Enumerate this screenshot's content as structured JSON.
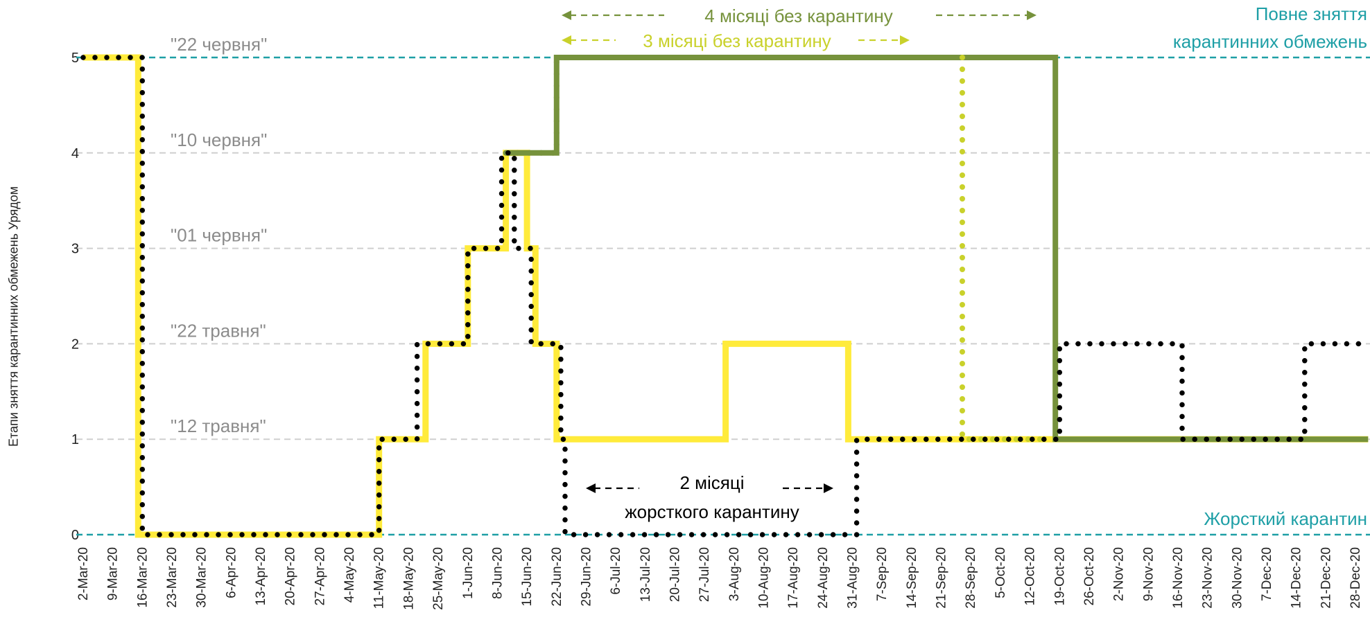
{
  "chart_data": {
    "type": "line",
    "ylabel": "Етапи зняття карантинних обмежень Урядом",
    "xlabel": "",
    "ylim": [
      0,
      5
    ],
    "x_range": [
      "2020-03-02",
      "2020-12-28"
    ],
    "yticks": [
      "0",
      "1",
      "2",
      "3",
      "4",
      "5"
    ],
    "grid": "horizontal dashed",
    "categories": [
      "2-Mar-20",
      "9-Mar-20",
      "16-Mar-20",
      "23-Mar-20",
      "30-Mar-20",
      "6-Apr-20",
      "13-Apr-20",
      "20-Apr-20",
      "27-Apr-20",
      "4-May-20",
      "11-May-20",
      "18-May-20",
      "25-May-20",
      "1-Jun-20",
      "8-Jun-20",
      "15-Jun-20",
      "22-Jun-20",
      "29-Jun-20",
      "6-Jul-20",
      "13-Jul-20",
      "20-Jul-20",
      "27-Jul-20",
      "3-Aug-20",
      "10-Aug-20",
      "17-Aug-20",
      "24-Aug-20",
      "31-Aug-20",
      "7-Sep-20",
      "14-Sep-20",
      "21-Sep-20",
      "28-Sep-20",
      "5-Oct-20",
      "12-Oct-20",
      "19-Oct-20",
      "26-Oct-20",
      "2-Nov-20",
      "9-Nov-20",
      "16-Nov-20",
      "23-Nov-20",
      "30-Nov-20",
      "7-Dec-20",
      "14-Dec-20",
      "21-Dec-20",
      "28-Dec-20"
    ],
    "stage_labels": [
      {
        "y": 1,
        "text": "\"12 травня\""
      },
      {
        "y": 2,
        "text": "\"22 травня\""
      },
      {
        "y": 3,
        "text": "\"01 червня\""
      },
      {
        "y": 4,
        "text": "\"10 червня\""
      },
      {
        "y": 5,
        "text": "\"22 червня\""
      }
    ],
    "reference_lines": [
      {
        "y": 5,
        "text": [
          "Повне зняття",
          "карантинних обмежень"
        ]
      },
      {
        "y": 0,
        "text": [
          "Жорсткий карантин"
        ]
      }
    ],
    "annotations": {
      "four_months": "4 місяці без карантину",
      "three_months": "3 місяці без карантину",
      "two_months": [
        "2 місяці",
        "жорсткого карантину"
      ]
    },
    "series": [
      {
        "style": "solid",
        "color": "#FFEB3B",
        "steps": [
          [
            "2020-03-02",
            5
          ],
          [
            "2020-03-15",
            0
          ],
          [
            "2020-05-11",
            1
          ],
          [
            "2020-05-22",
            2
          ],
          [
            "2020-06-01",
            3
          ],
          [
            "2020-06-10",
            4
          ],
          [
            "2020-06-15",
            3
          ],
          [
            "2020-06-17",
            2
          ],
          [
            "2020-06-22",
            1
          ],
          [
            "2020-08-01",
            2
          ],
          [
            "2020-08-30",
            1
          ],
          [
            "2020-12-31",
            1
          ]
        ]
      },
      {
        "style": "solid",
        "color": "#76923C",
        "steps": [
          [
            "2020-06-10",
            4
          ],
          [
            "2020-06-22",
            5
          ],
          [
            "2020-10-18",
            1
          ],
          [
            "2020-12-31",
            1
          ]
        ]
      },
      {
        "style": "dotted",
        "color": "#76923C",
        "steps": [
          [
            "2020-06-10",
            4
          ],
          [
            "2020-06-22",
            5
          ],
          [
            "2020-09-26",
            5
          ]
        ]
      },
      {
        "style": "dotted",
        "color": "#C9D12B",
        "steps": [
          [
            "2020-09-26",
            5
          ],
          [
            "2020-09-26",
            1
          ],
          [
            "2020-10-16",
            1
          ]
        ]
      },
      {
        "style": "dotted",
        "color": "#000000",
        "steps": [
          [
            "2020-03-02",
            5
          ],
          [
            "2020-03-16",
            0
          ],
          [
            "2020-05-11",
            1
          ],
          [
            "2020-05-20",
            2
          ],
          [
            "2020-06-01",
            3
          ],
          [
            "2020-06-09",
            4
          ],
          [
            "2020-06-12",
            3
          ],
          [
            "2020-06-16",
            2
          ],
          [
            "2020-06-23",
            1
          ],
          [
            "2020-06-24",
            0
          ],
          [
            "2020-08-31",
            0
          ],
          [
            "2020-09-01",
            1
          ],
          [
            "2020-10-18",
            1
          ],
          [
            "2020-10-19",
            2
          ],
          [
            "2020-11-15",
            2
          ],
          [
            "2020-11-17",
            1
          ],
          [
            "2020-12-14",
            1
          ],
          [
            "2020-12-16",
            2
          ],
          [
            "2020-12-31",
            2
          ]
        ]
      }
    ]
  }
}
